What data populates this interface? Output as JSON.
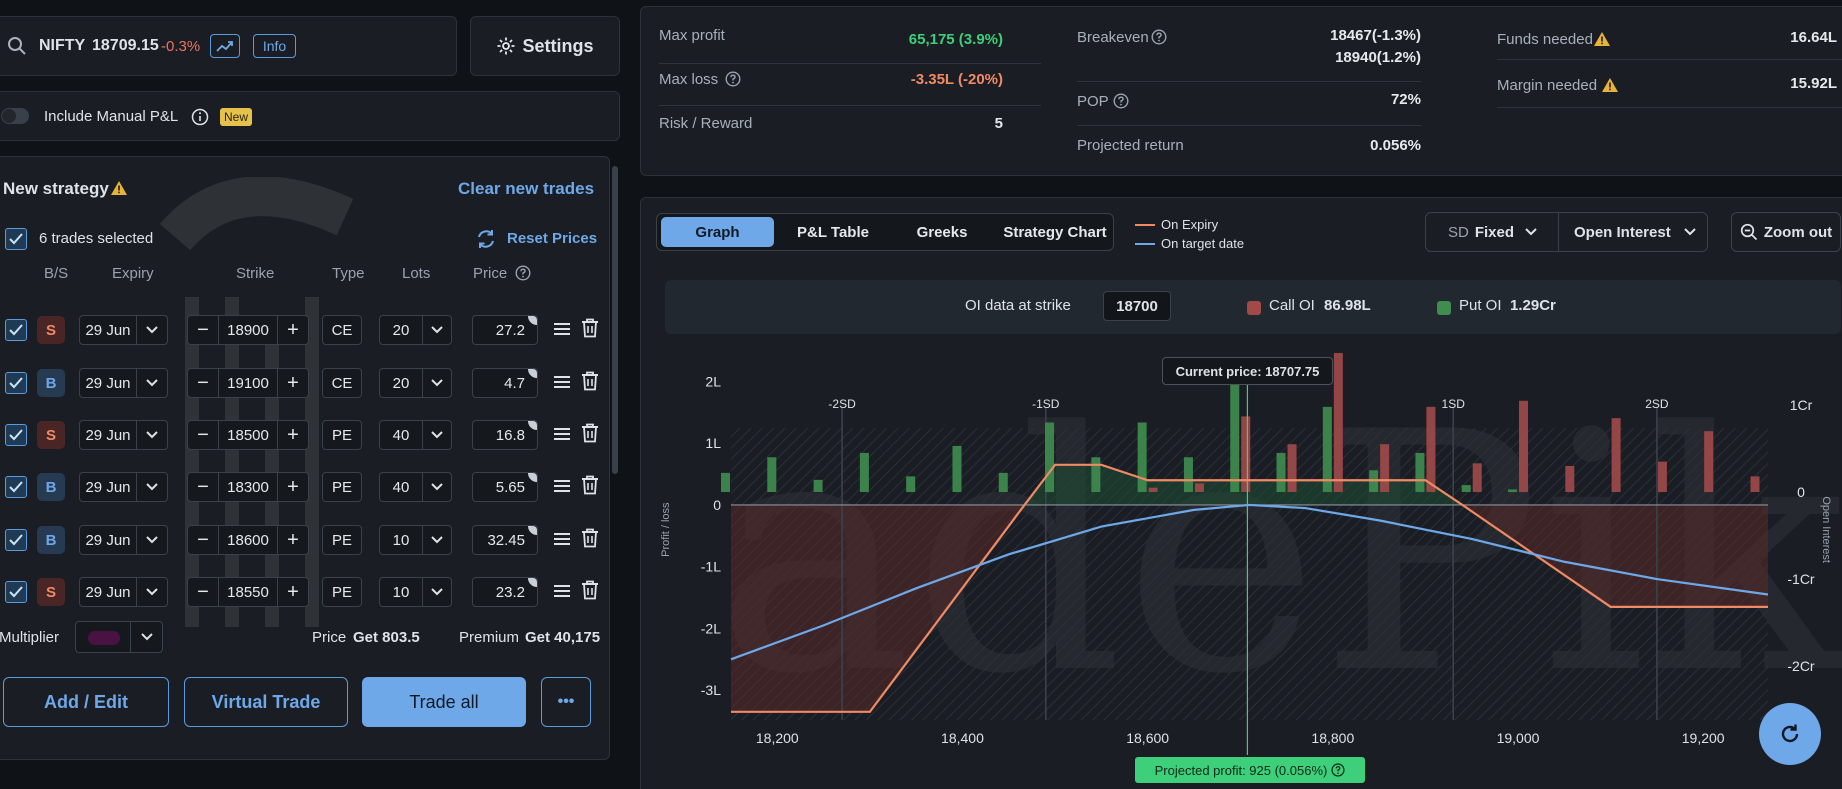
{
  "search": {
    "symbol": "NIFTY",
    "price": "18709.15",
    "change": "-0.3%",
    "info_label": "Info"
  },
  "settings_label": "Settings",
  "manual_pnl": {
    "label": "Include Manual P&L",
    "badge": "New"
  },
  "strategy": {
    "title": "New strategy",
    "clear_label": "Clear new trades",
    "selected_label": "6 trades selected",
    "reset_label": "Reset Prices",
    "headers": {
      "bs": "B/S",
      "expiry": "Expiry",
      "strike": "Strike",
      "type": "Type",
      "lots": "Lots",
      "price": "Price"
    },
    "trades": [
      {
        "bs": "S",
        "expiry": "29 Jun",
        "strike": "18900",
        "type": "CE",
        "lots": "20",
        "price": "27.2"
      },
      {
        "bs": "B",
        "expiry": "29 Jun",
        "strike": "19100",
        "type": "CE",
        "lots": "20",
        "price": "4.7"
      },
      {
        "bs": "S",
        "expiry": "29 Jun",
        "strike": "18500",
        "type": "PE",
        "lots": "40",
        "price": "16.8"
      },
      {
        "bs": "B",
        "expiry": "29 Jun",
        "strike": "18300",
        "type": "PE",
        "lots": "40",
        "price": "5.65"
      },
      {
        "bs": "B",
        "expiry": "29 Jun",
        "strike": "18600",
        "type": "PE",
        "lots": "10",
        "price": "32.45"
      },
      {
        "bs": "S",
        "expiry": "29 Jun",
        "strike": "18550",
        "type": "PE",
        "lots": "10",
        "price": "23.2"
      }
    ],
    "multiplier_label": "Multiplier",
    "price_label": "Price",
    "price_value": "Get 803.5",
    "premium_label": "Premium",
    "premium_value": "Get 40,175",
    "buttons": {
      "add_edit": "Add / Edit",
      "virtual": "Virtual Trade",
      "trade_all": "Trade all",
      "more": "•••"
    }
  },
  "stats": {
    "max_profit": {
      "label": "Max profit",
      "value": "65,175 (3.9%)"
    },
    "max_loss": {
      "label": "Max loss",
      "value": "-3.35L (-20%)"
    },
    "risk_reward": {
      "label": "Risk / Reward",
      "value": "5"
    },
    "breakeven": {
      "label": "Breakeven",
      "value1": "18467(-1.3%)",
      "value2": "18940(1.2%)"
    },
    "pop": {
      "label": "POP",
      "value": "72%"
    },
    "projected_return": {
      "label": "Projected return",
      "value": "0.056%"
    },
    "funds_needed": {
      "label": "Funds needed",
      "value": "16.64L"
    },
    "margin_needed": {
      "label": "Margin needed",
      "value": "15.92L"
    }
  },
  "chart_panel": {
    "tabs": [
      "Graph",
      "P&L Table",
      "Greeks",
      "Strategy Chart"
    ],
    "legend": [
      "On Expiry",
      "On target date"
    ],
    "sd_label": "SD",
    "sd_value": "Fixed",
    "oi_dropdown": "Open Interest",
    "zoom_label": "Zoom out",
    "oi_strike_label": "OI data at strike",
    "oi_strike_value": "18700",
    "call_oi_label": "Call OI",
    "call_oi_value": "86.98L",
    "put_oi_label": "Put OI",
    "put_oi_value": "1.29Cr",
    "current_price_label": "Current price: 18707.75",
    "projected_profit_label": "Projected profit: 925 (0.056%)",
    "ylabel_left": "Profit / loss",
    "ylabel_right": "Open Interest"
  },
  "chart_data": {
    "type": "line",
    "x_range": [
      18150,
      19270
    ],
    "y_range_left": [
      -3.45,
      2.25
    ],
    "y_range_right": [
      -2.6,
      1.45
    ],
    "x_ticks": [
      18200,
      18400,
      18600,
      18800,
      19000,
      19200
    ],
    "x_tick_labels": [
      "18,200",
      "18,400",
      "18,600",
      "18,800",
      "19,000",
      "19,200"
    ],
    "y_ticks_left": [
      2,
      1,
      0,
      -1,
      -2,
      -3
    ],
    "y_tick_labels_left": [
      "2L",
      "1L",
      "0",
      "-1L",
      "-2L",
      "-3L"
    ],
    "y_ticks_right": [
      1,
      0,
      -1,
      -2
    ],
    "y_tick_labels_right": [
      "1Cr",
      "0",
      "-1Cr",
      "-2Cr"
    ],
    "sd_lines": [
      {
        "label": "-2SD",
        "x": 18270
      },
      {
        "label": "-1SD",
        "x": 18490
      },
      {
        "label": "1SD",
        "x": 18930
      },
      {
        "label": "2SD",
        "x": 19150
      }
    ],
    "current_price": 18707.75,
    "series": [
      {
        "name": "On Expiry",
        "color": "#f08a65",
        "points": [
          [
            18150,
            -3.35
          ],
          [
            18300,
            -3.35
          ],
          [
            18467,
            0
          ],
          [
            18500,
            0.65
          ],
          [
            18550,
            0.65
          ],
          [
            18600,
            0.4
          ],
          [
            18900,
            0.4
          ],
          [
            18940,
            0
          ],
          [
            19100,
            -1.65
          ],
          [
            19270,
            -1.65
          ]
        ]
      },
      {
        "name": "On target date",
        "color": "#6ea8e8",
        "points": [
          [
            18150,
            -2.5
          ],
          [
            18250,
            -1.95
          ],
          [
            18350,
            -1.35
          ],
          [
            18450,
            -0.8
          ],
          [
            18550,
            -0.35
          ],
          [
            18650,
            -0.08
          ],
          [
            18710,
            0.0
          ],
          [
            18770,
            -0.05
          ],
          [
            18850,
            -0.25
          ],
          [
            18950,
            -0.55
          ],
          [
            19050,
            -0.92
          ],
          [
            19150,
            -1.2
          ],
          [
            19270,
            -1.45
          ]
        ]
      }
    ],
    "oi_bars": [
      {
        "x": 18150,
        "put": 0.22,
        "call": 0
      },
      {
        "x": 18200,
        "put": 0.4,
        "call": 0
      },
      {
        "x": 18250,
        "put": 0.14,
        "call": 0
      },
      {
        "x": 18300,
        "put": 0.45,
        "call": 0
      },
      {
        "x": 18350,
        "put": 0.18,
        "call": 0
      },
      {
        "x": 18400,
        "put": 0.53,
        "call": 0
      },
      {
        "x": 18450,
        "put": 0.22,
        "call": 0
      },
      {
        "x": 18500,
        "put": 0.8,
        "call": 0
      },
      {
        "x": 18550,
        "put": 0.4,
        "call": 0
      },
      {
        "x": 18600,
        "put": 0.8,
        "call": 0.05
      },
      {
        "x": 18650,
        "put": 0.4,
        "call": 0.1
      },
      {
        "x": 18700,
        "put": 1.3,
        "call": 0.87
      },
      {
        "x": 18750,
        "put": 0.45,
        "call": 0.55
      },
      {
        "x": 18800,
        "put": 0.98,
        "call": 1.6
      },
      {
        "x": 18850,
        "put": 0.25,
        "call": 0.55
      },
      {
        "x": 18900,
        "put": 0.45,
        "call": 0.98
      },
      {
        "x": 18950,
        "put": 0.08,
        "call": 0.33
      },
      {
        "x": 19000,
        "put": 0.03,
        "call": 1.05
      },
      {
        "x": 19050,
        "put": 0,
        "call": 0.3
      },
      {
        "x": 19100,
        "put": 0,
        "call": 0.85
      },
      {
        "x": 19150,
        "put": 0,
        "call": 0.35
      },
      {
        "x": 19200,
        "put": 0,
        "call": 0.7
      },
      {
        "x": 19250,
        "put": 0,
        "call": 0.18
      }
    ]
  }
}
